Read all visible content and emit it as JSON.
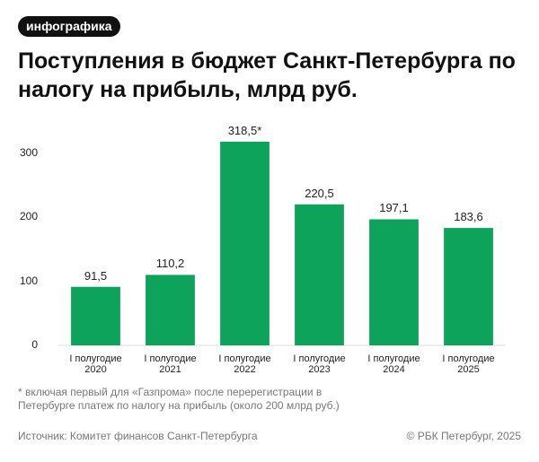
{
  "badge": "инфографика",
  "chart_data": {
    "type": "bar",
    "title": "Поступления в бюджет Санкт-Петербурга по налогу на прибыль, млрд руб.",
    "categories": [
      "I полугодие 2020",
      "I полугодие 2021",
      "I полугодие 2022",
      "I полугодие 2023",
      "I полугодие 2024",
      "I полугодие 2025"
    ],
    "values": [
      91.5,
      110.2,
      318.5,
      220.5,
      197.1,
      183.6
    ],
    "value_labels": [
      "91,5",
      "110,2",
      "318,5*",
      "220,5",
      "197,1",
      "183,6"
    ],
    "color": "#0ea35a",
    "ylim": [
      0,
      330
    ],
    "yticks": [
      0,
      100,
      200,
      300
    ],
    "grid": false
  },
  "footnote": "* включая первый для «Газпрома» после перерегистрации в Петербурге платеж по налогу на прибыль (около 200 млрд руб.)",
  "source": "Источник: Комитет финансов Санкт-Петербурга",
  "copyright": "© РБК Петербург, 2025"
}
